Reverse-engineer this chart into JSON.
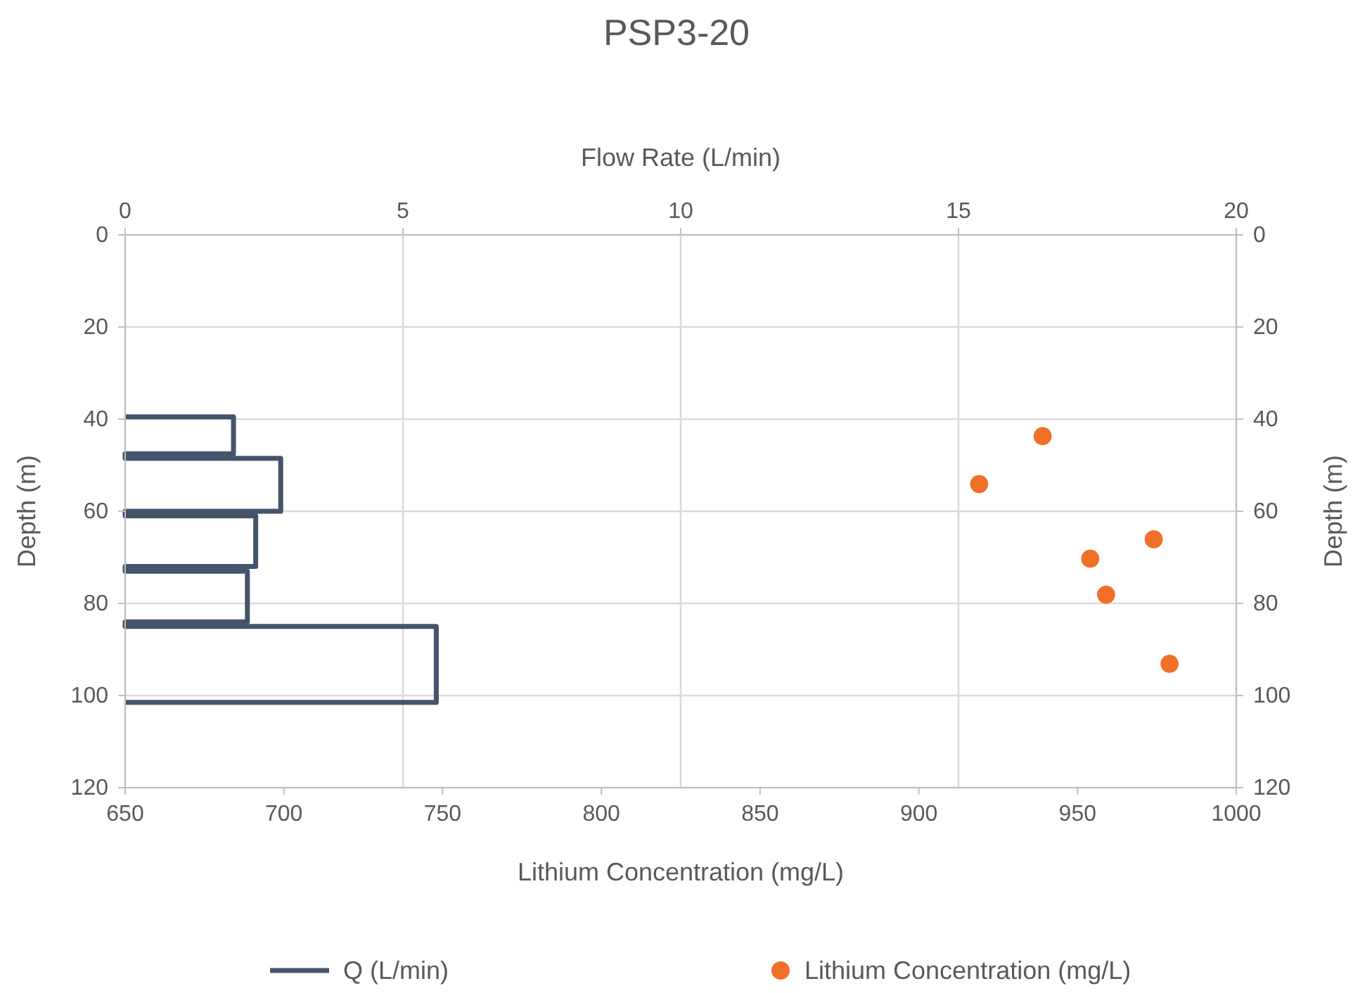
{
  "chart_data": {
    "type": "scatter",
    "title": "PSP3-20",
    "xlabel": "Lithium Concentration (mg/L)",
    "x2label": "Flow Rate (L/min)",
    "ylabel": "Depth (m)",
    "y2label": "Depth (m)",
    "xlim": [
      650,
      1000
    ],
    "xticks": [
      650,
      700,
      750,
      800,
      850,
      900,
      950,
      1000
    ],
    "x2lim": [
      0,
      20
    ],
    "x2ticks": [
      0,
      5,
      10,
      15,
      20
    ],
    "ylim": [
      120,
      0
    ],
    "yticks": [
      0,
      20,
      40,
      60,
      80,
      100,
      120
    ],
    "y2lim": [
      120,
      0
    ],
    "y2ticks": [
      0,
      20,
      40,
      60,
      80,
      100,
      120
    ],
    "grid": true,
    "legend": "bottom",
    "series": [
      {
        "name": "Q (L/min)",
        "type": "line",
        "axis": "x2",
        "color": "#44546a",
        "marker": "none",
        "line_style": "solid",
        "x": [
          0,
          1.95,
          1.95,
          0,
          0,
          2.8,
          2.8,
          0,
          0,
          2.35,
          2.35,
          0,
          0,
          2.2,
          2.2,
          0,
          0,
          5.6,
          5.6,
          0
        ],
        "values": [
          39.5,
          39.5,
          47.5,
          47.5,
          48.5,
          48.5,
          60,
          60,
          61,
          61,
          72,
          72,
          73,
          73,
          84,
          84,
          85,
          85,
          101.5,
          101.5
        ]
      },
      {
        "name": "Lithium Concentration (mg/L)",
        "color": "#f07028",
        "marker": "circle",
        "x": [
          939,
          919,
          974,
          954,
          959,
          979
        ],
        "values": [
          43.7,
          54.1,
          66.1,
          70.3,
          78.1,
          93.1
        ]
      }
    ]
  }
}
